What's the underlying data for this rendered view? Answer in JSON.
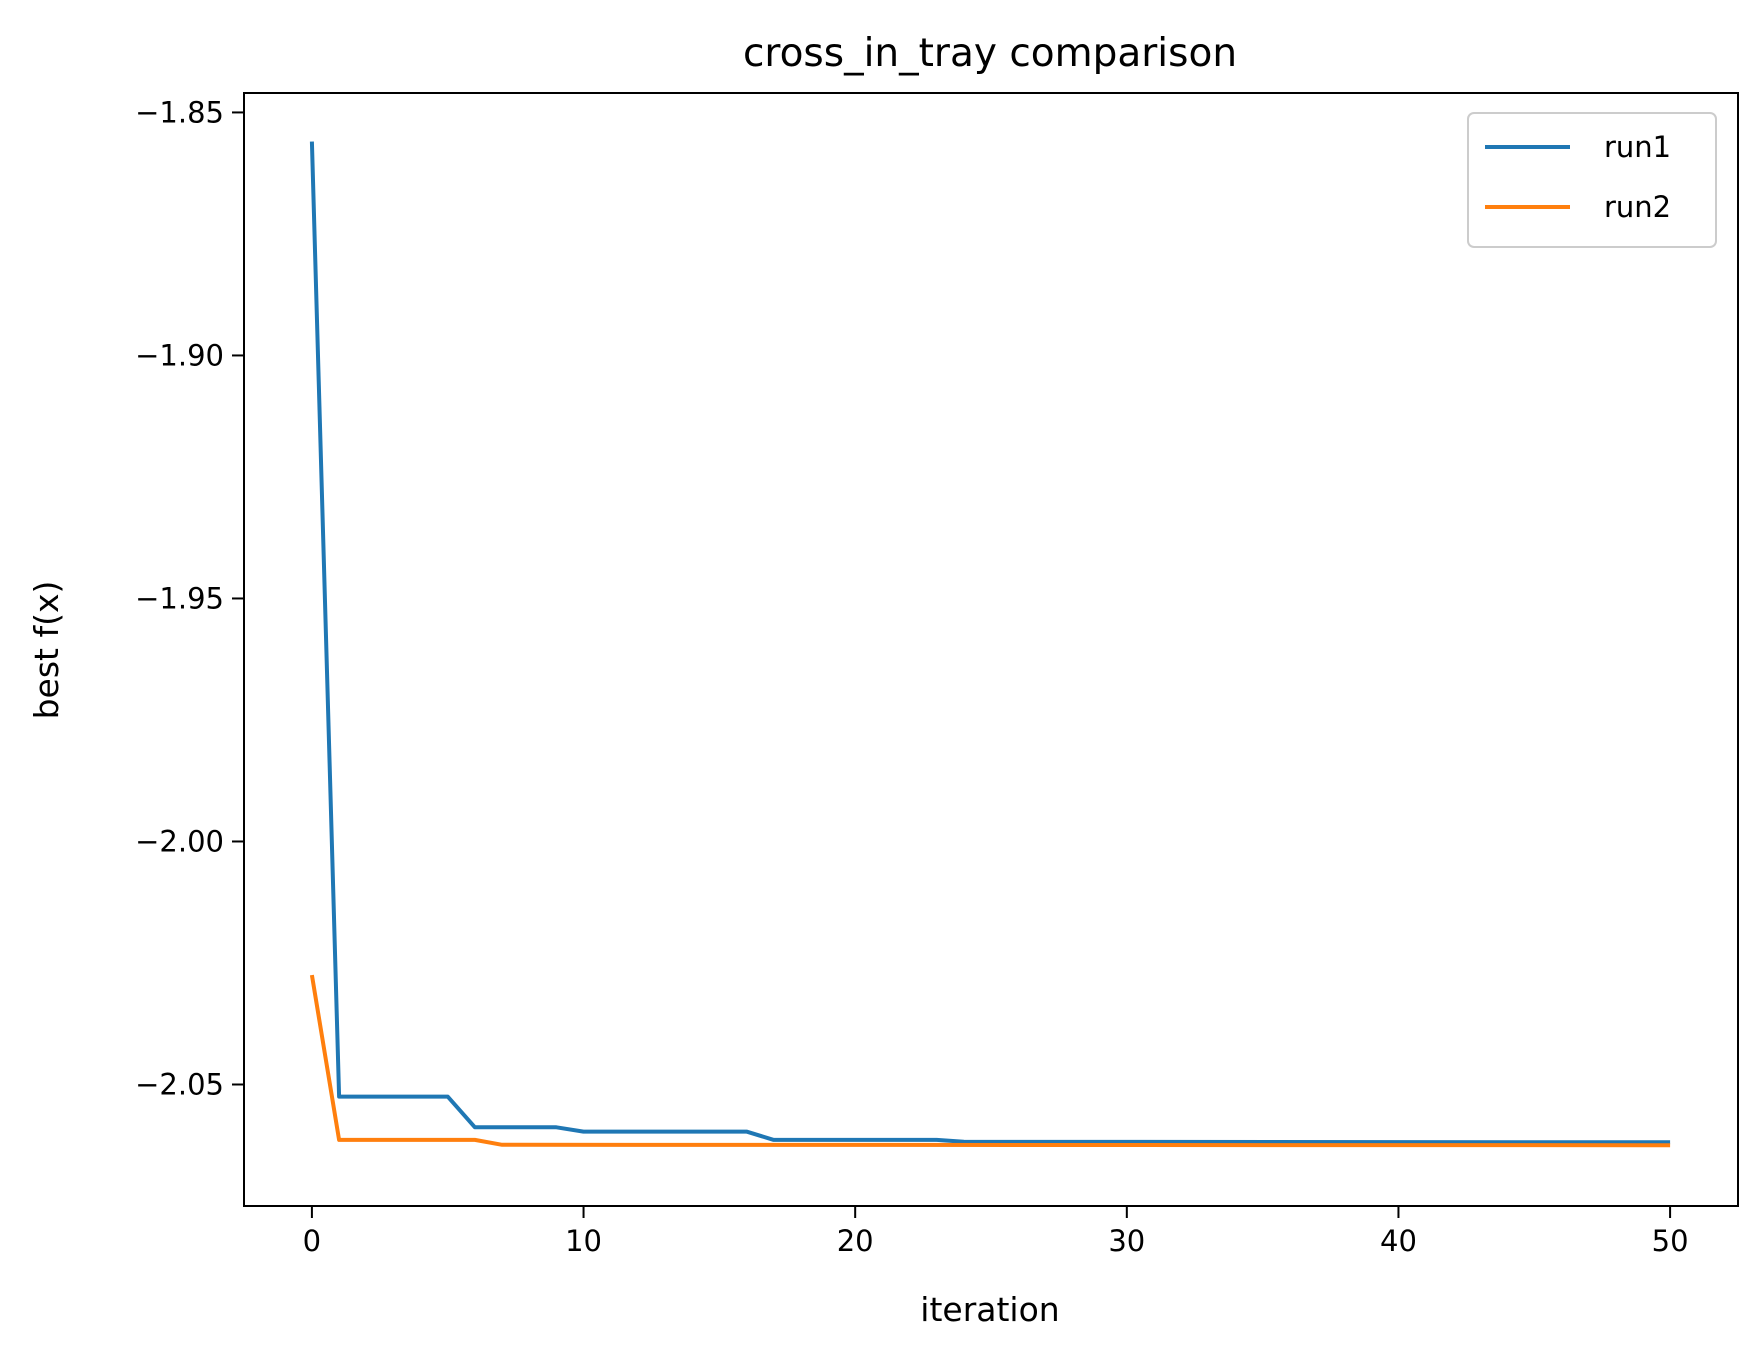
{
  "chart_data": {
    "type": "line",
    "title": "cross_in_tray comparison",
    "xlabel": "iteration",
    "ylabel": "best f(x)",
    "xlim": [
      -2.5,
      52.5
    ],
    "ylim": [
      -2.075,
      -1.846
    ],
    "xticks": [
      0,
      10,
      20,
      30,
      40,
      50
    ],
    "yticks": [
      -1.85,
      -1.9,
      -1.95,
      -2.0,
      -2.05
    ],
    "xtick_labels": [
      "0",
      "10",
      "20",
      "30",
      "40",
      "50"
    ],
    "ytick_labels": [
      "−1.85",
      "−1.90",
      "−1.95",
      "−2.00",
      "−2.05"
    ],
    "grid": false,
    "legend": {
      "position": "top-right"
    },
    "series": [
      {
        "name": "run1",
        "color": "#1f77b4",
        "points": [
          [
            0,
            -1.856
          ],
          [
            1,
            -2.0525
          ],
          [
            5,
            -2.0525
          ],
          [
            6,
            -2.0588
          ],
          [
            9,
            -2.0588
          ],
          [
            10,
            -2.0597
          ],
          [
            16,
            -2.0597
          ],
          [
            17,
            -2.0614
          ],
          [
            23,
            -2.0614
          ],
          [
            24,
            -2.0618
          ],
          [
            50,
            -2.0619
          ]
        ]
      },
      {
        "name": "run2",
        "color": "#ff7f0e",
        "points": [
          [
            0,
            -2.0275
          ],
          [
            1,
            -2.0614
          ],
          [
            6,
            -2.0614
          ],
          [
            7,
            -2.0624
          ],
          [
            50,
            -2.0625
          ]
        ]
      }
    ]
  }
}
